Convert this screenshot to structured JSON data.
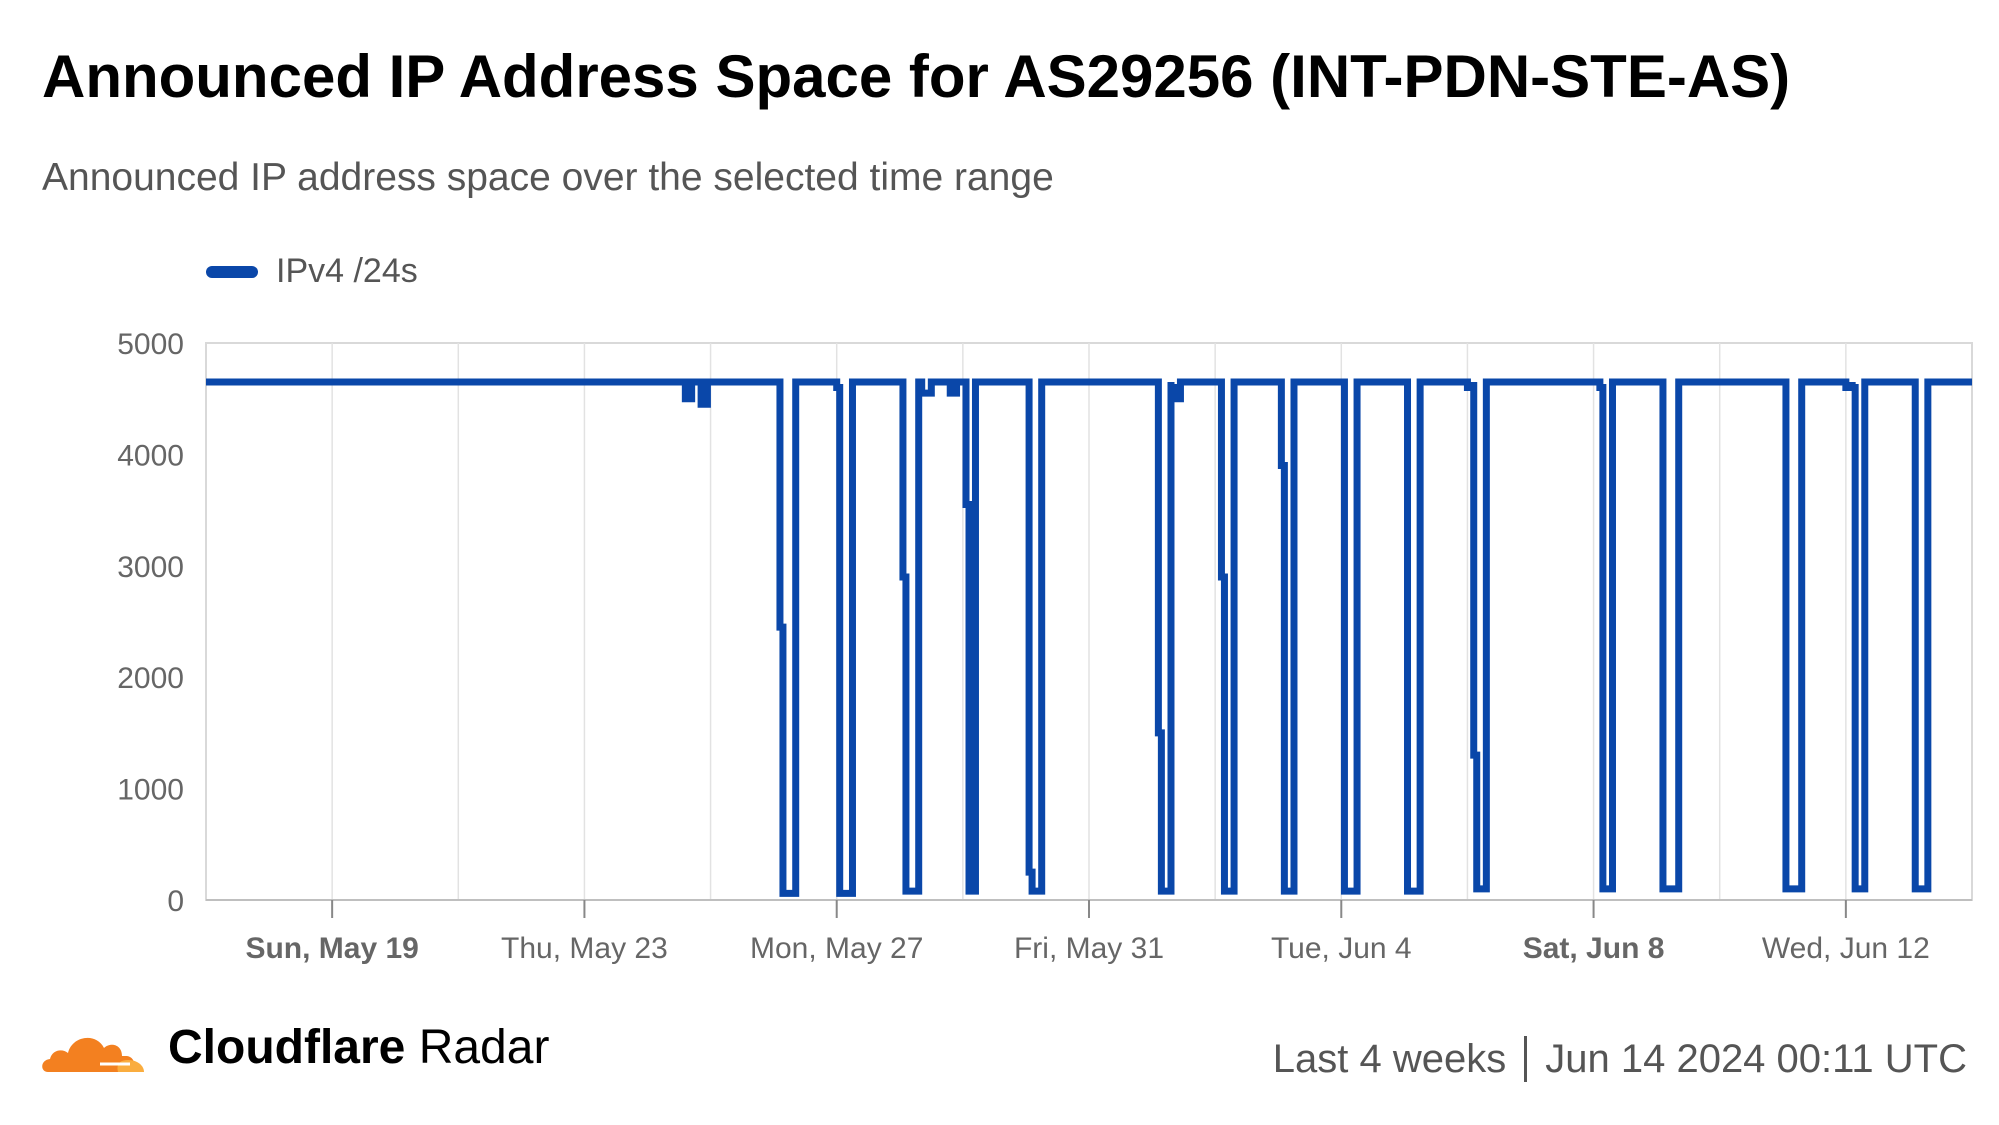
{
  "header": {
    "title": "Announced IP Address Space for AS29256 (INT-PDN-STE-AS)",
    "subtitle": "Announced IP address space over the selected time range"
  },
  "legend": {
    "label": "IPv4 /24s",
    "color": "#0a47a9"
  },
  "footer": {
    "brand_bold": "Cloudflare",
    "brand_regular": " Radar",
    "range": "Last 4 weeks",
    "timestamp": "Jun 14 2024 00:11 UTC"
  },
  "chart_data": {
    "type": "line",
    "title": "Announced IP Address Space for AS29256 (INT-PDN-STE-AS)",
    "subtitle": "Announced IP address space over the selected time range",
    "xlabel": "",
    "ylabel": "",
    "ylim": [
      0,
      5000
    ],
    "yticks": [
      0,
      1000,
      2000,
      3000,
      4000,
      5000
    ],
    "xticks": [
      {
        "label": "Sun, May 19",
        "day": 2,
        "bold": true
      },
      {
        "label": "Thu, May 23",
        "day": 6,
        "bold": false
      },
      {
        "label": "Mon, May 27",
        "day": 10,
        "bold": false
      },
      {
        "label": "Fri, May 31",
        "day": 14,
        "bold": false
      },
      {
        "label": "Tue, Jun 4",
        "day": 18,
        "bold": false
      },
      {
        "label": "Sat, Jun 8",
        "day": 22,
        "bold": true
      },
      {
        "label": "Wed, Jun 12",
        "day": 26,
        "bold": false
      }
    ],
    "xlim_days": [
      0,
      28
    ],
    "grid": true,
    "legend_position": "top-left",
    "series": [
      {
        "name": "IPv4 /24s",
        "color": "#0a47a9",
        "baseline": 4650,
        "events": [
          {
            "start": 7.6,
            "end": 7.7,
            "low": 4500
          },
          {
            "start": 7.85,
            "end": 7.95,
            "low": 4450
          },
          {
            "start": 9.1,
            "end": 9.35,
            "low": 60,
            "step": 2450
          },
          {
            "start": 10.0,
            "end": 10.25,
            "low": 60,
            "step": 4600
          },
          {
            "start": 11.05,
            "end": 11.3,
            "low": 80,
            "step": 2900
          },
          {
            "start": 11.3,
            "end": 11.5,
            "low": 4550,
            "step": 4650
          },
          {
            "start": 11.8,
            "end": 11.9,
            "low": 4550
          },
          {
            "start": 12.05,
            "end": 12.2,
            "low": 80,
            "step": 3550
          },
          {
            "start": 13.05,
            "end": 13.25,
            "low": 80,
            "step": 250
          },
          {
            "start": 15.1,
            "end": 15.3,
            "low": 80,
            "step": 1500
          },
          {
            "start": 15.3,
            "end": 15.45,
            "low": 4500,
            "step": 4600
          },
          {
            "start": 16.1,
            "end": 16.3,
            "low": 80,
            "step": 2900
          },
          {
            "start": 17.05,
            "end": 17.25,
            "low": 80,
            "step": 3900
          },
          {
            "start": 18.05,
            "end": 18.25,
            "low": 80
          },
          {
            "start": 19.05,
            "end": 19.25,
            "low": 80
          },
          {
            "start": 20.0,
            "end": 20.1,
            "low": 4600
          },
          {
            "start": 20.1,
            "end": 20.3,
            "low": 100,
            "step": 1300
          },
          {
            "start": 22.1,
            "end": 22.3,
            "low": 100,
            "step": 4600
          },
          {
            "start": 23.1,
            "end": 23.35,
            "low": 100
          },
          {
            "start": 25.05,
            "end": 25.3,
            "low": 100
          },
          {
            "start": 26.0,
            "end": 26.1,
            "low": 4600
          },
          {
            "start": 26.1,
            "end": 26.3,
            "low": 100,
            "step": 4600
          },
          {
            "start": 27.1,
            "end": 27.3,
            "low": 100
          }
        ]
      }
    ]
  }
}
